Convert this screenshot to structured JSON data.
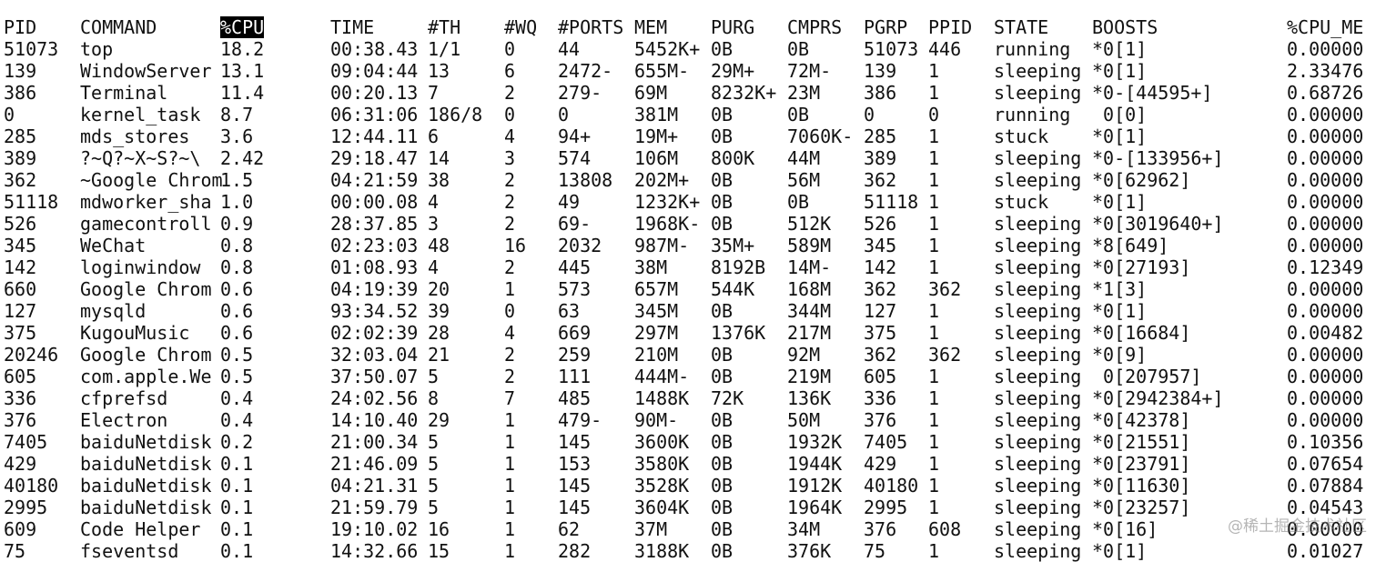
{
  "table": {
    "header": [
      "PID",
      "COMMAND",
      "%CPU",
      "TIME",
      "#TH",
      "#WQ",
      "#PORTS",
      "MEM",
      "PURG",
      "CMPRS",
      "PGRP",
      "PPID",
      "STATE",
      "BOOSTS",
      "%CPU_ME"
    ],
    "rows": [
      [
        "51073",
        "top",
        "18.2",
        "00:38.43",
        "1/1",
        "0",
        "44",
        "5452K+",
        "0B",
        "0B",
        "51073",
        "446",
        "running",
        "*0[1]",
        "0.00000"
      ],
      [
        "139",
        "WindowServer",
        "13.1",
        "09:04:44",
        "13",
        "6",
        "2472-",
        "655M-",
        "29M+",
        "72M-",
        "139",
        "1",
        "sleeping",
        "*0[1]",
        "2.33476"
      ],
      [
        "386",
        "Terminal",
        "11.4",
        "00:20.13",
        "7",
        "2",
        "279-",
        "69M",
        "8232K+",
        "23M",
        "386",
        "1",
        "sleeping",
        "*0-[44595+]",
        "0.68726"
      ],
      [
        "0",
        "kernel_task",
        "8.7",
        "06:31:06",
        "186/8",
        "0",
        "0",
        "381M",
        "0B",
        "0B",
        "0",
        "0",
        "running",
        " 0[0]",
        "0.00000"
      ],
      [
        "285",
        "mds_stores",
        "3.6",
        "12:44.11",
        "6",
        "4",
        "94+",
        "19M+",
        "0B",
        "7060K-",
        "285",
        "1",
        "stuck",
        "*0[1]",
        "0.00000"
      ],
      [
        "389",
        "?~Q?~X~S?~\\",
        "2.42",
        "29:18.47",
        "14",
        "3",
        "574",
        "106M",
        "800K",
        "44M",
        "389",
        "1",
        "sleeping",
        "*0-[133956+]",
        "0.00000"
      ],
      [
        "362",
        "~Google Chrom",
        "1.5",
        "04:21:59",
        "38",
        "2",
        "13808",
        "202M+",
        "0B",
        "56M",
        "362",
        "1",
        "sleeping",
        "*0[62962]",
        "0.00000"
      ],
      [
        "51118",
        "mdworker_sha",
        "1.0",
        "00:00.08",
        "4",
        "2",
        "49",
        "1232K+",
        "0B",
        "0B",
        "51118",
        "1",
        "stuck",
        "*0[1]",
        "0.00000"
      ],
      [
        "526",
        "gamecontroll",
        "0.9",
        "28:37.85",
        "3",
        "2",
        "69-",
        "1968K-",
        "0B",
        "512K",
        "526",
        "1",
        "sleeping",
        "*0[3019640+]",
        "0.00000"
      ],
      [
        "345",
        "WeChat",
        "0.8",
        "02:23:03",
        "48",
        "16",
        "2032",
        "987M-",
        "35M+",
        "589M",
        "345",
        "1",
        "sleeping",
        "*8[649]",
        "0.00000"
      ],
      [
        "142",
        "loginwindow",
        "0.8",
        "01:08.93",
        "4",
        "2",
        "445",
        "38M",
        "8192B",
        "14M-",
        "142",
        "1",
        "sleeping",
        "*0[27193]",
        "0.12349"
      ],
      [
        "660",
        "Google Chrom",
        "0.6",
        "04:19:39",
        "20",
        "1",
        "573",
        "657M",
        "544K",
        "168M",
        "362",
        "362",
        "sleeping",
        "*1[3]",
        "0.00000"
      ],
      [
        "127",
        "mysqld",
        "0.6",
        "93:34.52",
        "39",
        "0",
        "63",
        "345M",
        "0B",
        "344M",
        "127",
        "1",
        "sleeping",
        "*0[1]",
        "0.00000"
      ],
      [
        "375",
        "KugouMusic",
        "0.6",
        "02:02:39",
        "28",
        "4",
        "669",
        "297M",
        "1376K",
        "217M",
        "375",
        "1",
        "sleeping",
        "*0[16684]",
        "0.00482"
      ],
      [
        "20246",
        "Google Chrom",
        "0.5",
        "32:03.04",
        "21",
        "2",
        "259",
        "210M",
        "0B",
        "92M",
        "362",
        "362",
        "sleeping",
        "*0[9]",
        "0.00000"
      ],
      [
        "605",
        "com.apple.We",
        "0.5",
        "37:50.07",
        "5",
        "2",
        "111",
        "444M-",
        "0B",
        "219M",
        "605",
        "1",
        "sleeping",
        " 0[207957]",
        "0.00000"
      ],
      [
        "336",
        "cfprefsd",
        "0.4",
        "24:02.56",
        "8",
        "7",
        "485",
        "1488K",
        "72K",
        "136K",
        "336",
        "1",
        "sleeping",
        "*0[2942384+]",
        "0.00000"
      ],
      [
        "376",
        "Electron",
        "0.4",
        "14:10.40",
        "29",
        "1",
        "479-",
        "90M-",
        "0B",
        "50M",
        "376",
        "1",
        "sleeping",
        "*0[42378]",
        "0.00000"
      ],
      [
        "7405",
        "baiduNetdisk",
        "0.2",
        "21:00.34",
        "5",
        "1",
        "145",
        "3600K",
        "0B",
        "1932K",
        "7405",
        "1",
        "sleeping",
        "*0[21551]",
        "0.10356"
      ],
      [
        "429",
        "baiduNetdisk",
        "0.1",
        "21:46.09",
        "5",
        "1",
        "153",
        "3580K",
        "0B",
        "1944K",
        "429",
        "1",
        "sleeping",
        "*0[23791]",
        "0.07654"
      ],
      [
        "40180",
        "baiduNetdisk",
        "0.1",
        "04:21.31",
        "5",
        "1",
        "145",
        "3528K",
        "0B",
        "1912K",
        "40180",
        "1",
        "sleeping",
        "*0[11630]",
        "0.07884"
      ],
      [
        "2995",
        "baiduNetdisk",
        "0.1",
        "21:59.79",
        "5",
        "1",
        "145",
        "3604K",
        "0B",
        "1964K",
        "2995",
        "1",
        "sleeping",
        "*0[23257]",
        "0.04543"
      ],
      [
        "609",
        "Code Helper",
        "0.1",
        "19:10.02",
        "16",
        "1",
        "62",
        "37M",
        "0B",
        "34M",
        "376",
        "608",
        "sleeping",
        "*0[16]",
        "0.00000"
      ],
      [
        "75",
        "fseventsd",
        "0.1",
        "14:32.66",
        "15",
        "1",
        "282",
        "3188K",
        "0B",
        "376K",
        "75",
        "1",
        "sleeping",
        "*0[1]",
        "0.01027"
      ]
    ]
  },
  "watermark": "@稀土掘金技术社区"
}
